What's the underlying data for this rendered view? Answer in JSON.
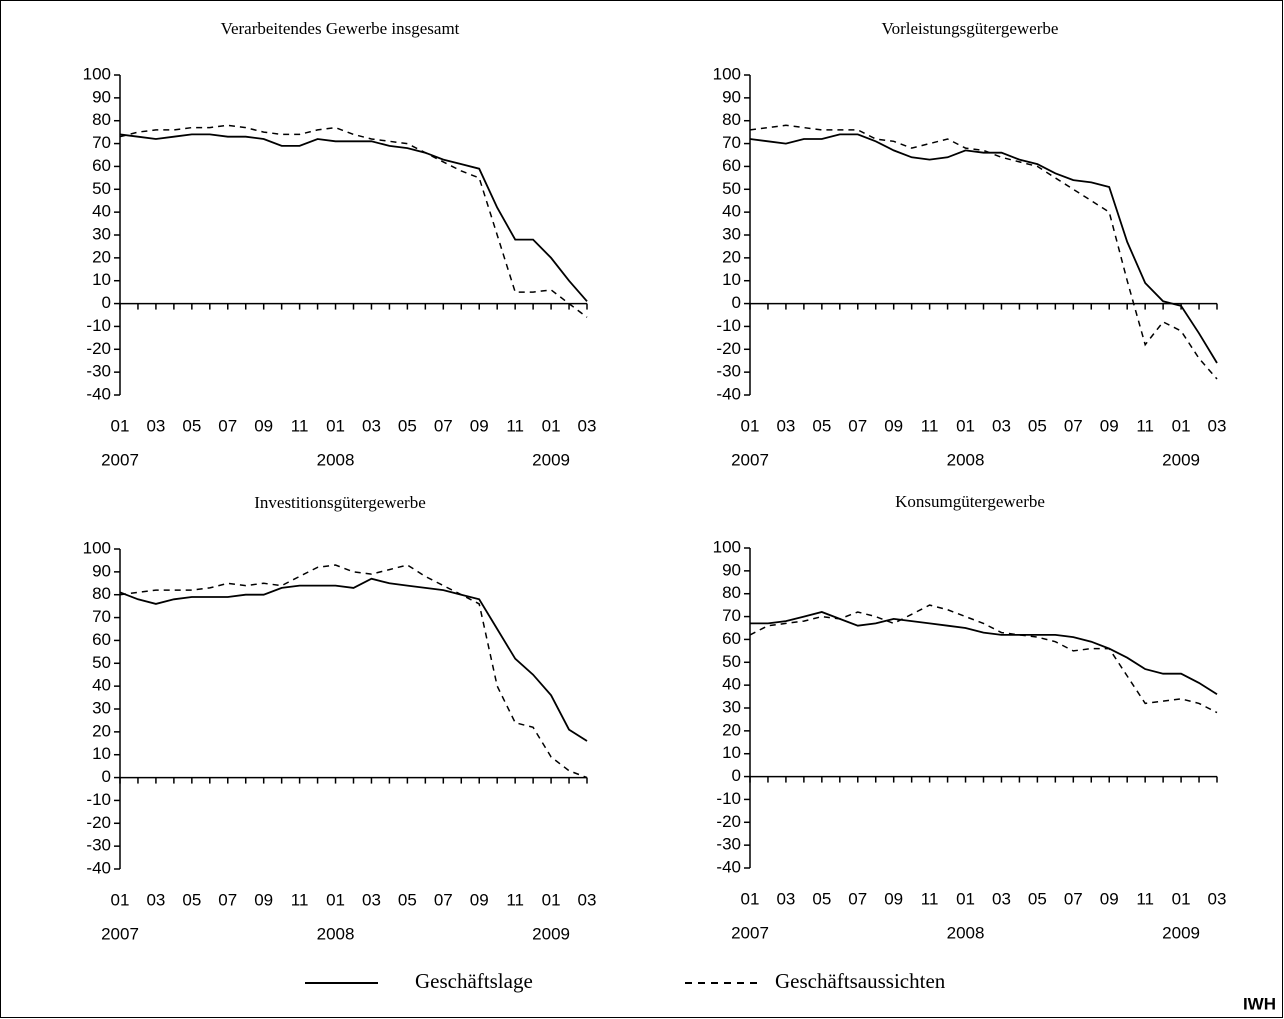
{
  "chart_data": [
    {
      "type": "line",
      "title": "Verarbeitendes Gewerbe insgesamt",
      "categories": [
        "01",
        null,
        "03",
        null,
        "05",
        null,
        "07",
        null,
        "09",
        null,
        "11",
        null,
        "01",
        null,
        "03",
        null,
        "05",
        null,
        "07",
        null,
        "09",
        null,
        "11",
        null,
        "01",
        null,
        "03"
      ],
      "year_labels": [
        "2007",
        "2008",
        "2009"
      ],
      "ylim": [
        -40,
        100
      ],
      "yticks": [
        -40,
        -30,
        -20,
        -10,
        0,
        10,
        20,
        30,
        40,
        50,
        60,
        70,
        80,
        90,
        100
      ],
      "series": [
        {
          "name": "Geschäftslage",
          "color": "#000000",
          "dash": "solid",
          "values": [
            74,
            73,
            72,
            73,
            74,
            74,
            73,
            73,
            72,
            69,
            69,
            72,
            71,
            71,
            71,
            69,
            68,
            66,
            63,
            61,
            59,
            42,
            28,
            28,
            20,
            10,
            1
          ]
        },
        {
          "name": "Geschäftsaussichten",
          "color": "#000000",
          "dash": "dashed",
          "values": [
            73,
            75,
            76,
            76,
            77,
            77,
            78,
            77,
            75,
            74,
            74,
            76,
            77,
            74,
            72,
            71,
            70,
            66,
            62,
            58,
            55,
            30,
            5,
            5,
            6,
            0,
            -6
          ]
        }
      ]
    },
    {
      "type": "line",
      "title": "Vorleistungsgütergewerbe",
      "categories": [
        "01",
        null,
        "03",
        null,
        "05",
        null,
        "07",
        null,
        "09",
        null,
        "11",
        null,
        "01",
        null,
        "03",
        null,
        "05",
        null,
        "07",
        null,
        "09",
        null,
        "11",
        null,
        "01",
        null,
        "03"
      ],
      "year_labels": [
        "2007",
        "2008",
        "2009"
      ],
      "ylim": [
        -40,
        100
      ],
      "yticks": [
        -40,
        -30,
        -20,
        -10,
        0,
        10,
        20,
        30,
        40,
        50,
        60,
        70,
        80,
        90,
        100
      ],
      "series": [
        {
          "name": "Geschäftslage",
          "color": "#000000",
          "dash": "solid",
          "values": [
            72,
            71,
            70,
            72,
            72,
            74,
            74,
            71,
            67,
            64,
            63,
            64,
            67,
            66,
            66,
            63,
            61,
            57,
            54,
            53,
            51,
            27,
            9,
            1,
            -1,
            -13,
            -26
          ]
        },
        {
          "name": "Geschäftsaussichten",
          "color": "#000000",
          "dash": "dashed",
          "values": [
            76,
            77,
            78,
            77,
            76,
            76,
            76,
            72,
            71,
            68,
            70,
            72,
            68,
            67,
            64,
            62,
            60,
            55,
            50,
            45,
            40,
            10,
            -18,
            -8,
            -12,
            -24,
            -33
          ]
        }
      ]
    },
    {
      "type": "line",
      "title": "Investitionsgütergewerbe",
      "categories": [
        "01",
        null,
        "03",
        null,
        "05",
        null,
        "07",
        null,
        "09",
        null,
        "11",
        null,
        "01",
        null,
        "03",
        null,
        "05",
        null,
        "07",
        null,
        "09",
        null,
        "11",
        null,
        "01",
        null,
        "03"
      ],
      "year_labels": [
        "2007",
        "2008",
        "2009"
      ],
      "ylim": [
        -40,
        100
      ],
      "yticks": [
        -40,
        -30,
        -20,
        -10,
        0,
        10,
        20,
        30,
        40,
        50,
        60,
        70,
        80,
        90,
        100
      ],
      "series": [
        {
          "name": "Geschäftslage",
          "color": "#000000",
          "dash": "solid",
          "values": [
            81,
            78,
            76,
            78,
            79,
            79,
            79,
            80,
            80,
            83,
            84,
            84,
            84,
            83,
            87,
            85,
            84,
            83,
            82,
            80,
            78,
            65,
            52,
            45,
            36,
            21,
            16
          ]
        },
        {
          "name": "Geschäftsaussichten",
          "color": "#000000",
          "dash": "dashed",
          "values": [
            80,
            81,
            82,
            82,
            82,
            83,
            85,
            84,
            85,
            84,
            88,
            92,
            93,
            90,
            89,
            91,
            93,
            88,
            84,
            80,
            76,
            40,
            24,
            22,
            9,
            3,
            0
          ]
        }
      ]
    },
    {
      "type": "line",
      "title": "Konsumgütergewerbe",
      "categories": [
        "01",
        null,
        "03",
        null,
        "05",
        null,
        "07",
        null,
        "09",
        null,
        "11",
        null,
        "01",
        null,
        "03",
        null,
        "05",
        null,
        "07",
        null,
        "09",
        null,
        "11",
        null,
        "01",
        null,
        "03"
      ],
      "year_labels": [
        "2007",
        "2008",
        "2009"
      ],
      "ylim": [
        -40,
        100
      ],
      "yticks": [
        -40,
        -30,
        -20,
        -10,
        0,
        10,
        20,
        30,
        40,
        50,
        60,
        70,
        80,
        90,
        100
      ],
      "series": [
        {
          "name": "Geschäftslage",
          "color": "#000000",
          "dash": "solid",
          "values": [
            67,
            67,
            68,
            70,
            72,
            69,
            66,
            67,
            69,
            68,
            67,
            66,
            65,
            63,
            62,
            62,
            62,
            62,
            61,
            59,
            56,
            52,
            47,
            45,
            45,
            41,
            36
          ]
        },
        {
          "name": "Geschäftsaussichten",
          "color": "#000000",
          "dash": "dashed",
          "values": [
            62,
            66,
            67,
            68,
            70,
            69,
            72,
            70,
            67,
            71,
            75,
            73,
            70,
            67,
            63,
            62,
            61,
            59,
            55,
            56,
            56,
            44,
            32,
            33,
            34,
            32,
            28
          ]
        }
      ]
    }
  ],
  "source": "IWH"
}
